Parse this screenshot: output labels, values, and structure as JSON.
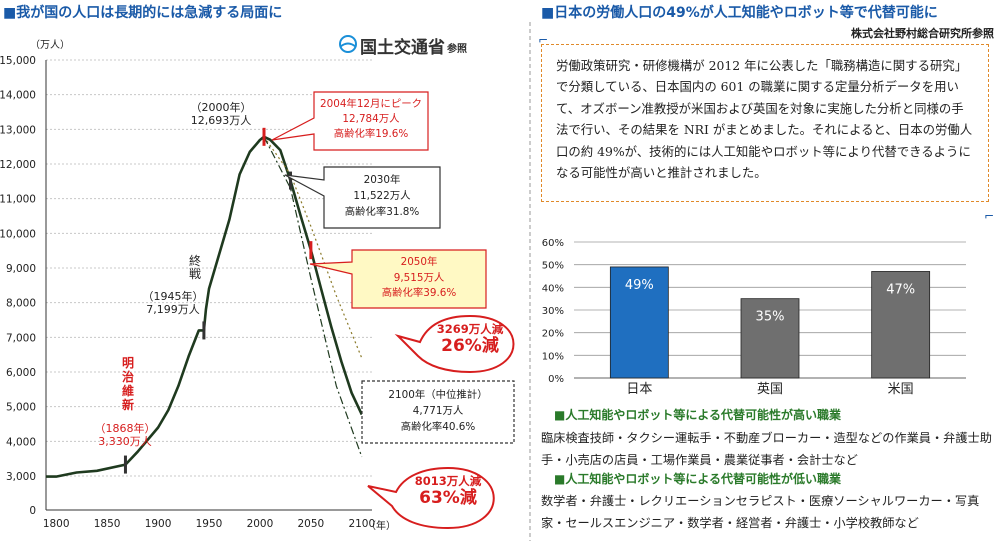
{
  "left": {
    "title": "■我が国の人口は長期的には急減する局面に",
    "source_logo": "国土交通省",
    "source_suffix": "参照",
    "y_unit": "（万人）",
    "x_unit": "（年）",
    "chart_data": {
      "type": "line",
      "ylim": [
        0,
        15000
      ],
      "xlim": [
        1790,
        2110
      ],
      "x_ticks": [
        1800,
        1850,
        1900,
        1950,
        2000,
        2050,
        2100
      ],
      "y_ticks": [
        0,
        3000,
        4000,
        5000,
        6000,
        7000,
        8000,
        9000,
        10000,
        11000,
        12000,
        13000,
        14000,
        15000
      ],
      "y_tick_labels": [
        "0",
        "3,000",
        "4,000",
        "5,000",
        "6,000",
        "7,000",
        "8,000",
        "9,000",
        "10,000",
        "11,000",
        "12,000",
        "13,000",
        "14,000",
        "15,000"
      ],
      "series": [
        {
          "values": [
            [
              1790,
              2950
            ],
            [
              1800,
              2950
            ],
            [
              1820,
              3100
            ],
            [
              1840,
              3150
            ],
            [
              1868,
              3330
            ],
            [
              1880,
              3700
            ],
            [
              1900,
              4400
            ],
            [
              1910,
              4900
            ],
            [
              1920,
              5600
            ],
            [
              1930,
              6450
            ],
            [
              1940,
              7200
            ],
            [
              1945,
              7199
            ],
            [
              1947,
              7800
            ],
            [
              1950,
              8400
            ],
            [
              1960,
              9400
            ],
            [
              1970,
              10400
            ],
            [
              1980,
              11700
            ],
            [
              1990,
              12350
            ],
            [
              2000,
              12693
            ],
            [
              2004,
              12784
            ],
            [
              2010,
              12700
            ],
            [
              2020,
              12400
            ],
            [
              2030,
              11522
            ],
            [
              2040,
              10500
            ],
            [
              2050,
              9515
            ],
            [
              2060,
              8400
            ],
            [
              2070,
              7300
            ],
            [
              2080,
              6300
            ],
            [
              2090,
              5400
            ],
            [
              2100,
              4771
            ]
          ]
        },
        {
          "values": [
            [
              2004,
              12784
            ],
            [
              2030,
              11700
            ],
            [
              2050,
              10200
            ],
            [
              2075,
              8200
            ],
            [
              2100,
              6400
            ]
          ]
        },
        {
          "values": [
            [
              2004,
              12784
            ],
            [
              2030,
              11300
            ],
            [
              2050,
              8700
            ],
            [
              2075,
              5600
            ],
            [
              2100,
              3550
            ]
          ]
        }
      ]
    },
    "annotations": {
      "meiji": "明治維新",
      "y1868_year": "（1868年）",
      "y1868_val": "3,330万人",
      "y1945_year": "（1945年）",
      "y1945_val": "7,199万人",
      "war_end": "終戦",
      "y2000_year": "（2000年）",
      "y2000_val": "12,693万人",
      "peak_l1": "2004年12月にピーク",
      "peak_l2": "12,784万人",
      "peak_l3": "高齢化率19.6%",
      "y2030_l1": "2030年",
      "y2030_l2": "11,522万人",
      "y2030_l3": "高齢化率31.8%",
      "y2050_l1": "2050年",
      "y2050_l2": "9,515万人",
      "y2050_l3": "高齢化率39.6%",
      "y2100_l1": "2100年（中位推計）",
      "y2100_l2": "4,771万人",
      "y2100_l3": "高齢化率40.6%",
      "dec1_l1": "3269万人減",
      "dec1_l2": "26%減",
      "dec2_l1": "8013万人減",
      "dec2_l2": "63%減"
    }
  },
  "right": {
    "title": "■日本の労働人口の49%が人工知能やロボット等で代替可能に",
    "source": "株式会社野村総合研究所参照",
    "paragraph": "労働政策研究・研修機構が 2012 年に公表した「職務構造に関する研究」で分類している、日本国内の 601 の職業に関する定量分析データを用いて、オズボーン准教授が米国および英国を対象に実施した分析と同様の手法で行い、その結果を NRI がまとめました。それによると、日本の労働人口の約 49%が、技術的には人工知能やロボット等により代替できるようになる可能性が高いと推計されました。",
    "chart_data": {
      "type": "bar",
      "categories": [
        "日本",
        "英国",
        "米国"
      ],
      "values": [
        49,
        35,
        47
      ],
      "value_labels": [
        "49%",
        "35%",
        "47%"
      ],
      "ylim": [
        0,
        60
      ],
      "y_ticks": [
        0,
        10,
        20,
        30,
        40,
        50,
        60
      ],
      "y_tick_labels": [
        "0%",
        "10%",
        "20%",
        "30%",
        "40%",
        "50%",
        "60%"
      ],
      "grid": true,
      "colors": [
        "#1f6fc0",
        "#6f6f6f",
        "#6f6f6f"
      ]
    },
    "high_heading": "■人工知能やロボット等による代替可能性が高い職業",
    "high_jobs": "臨床検査技師・タクシー運転手・不動産ブローカー・造型などの作業員・弁護士助手・小売店の店員・工場作業員・農業従事者・会計士など",
    "low_heading": "■人工知能やロボット等による代替可能性が低い職業",
    "low_jobs": "数学者・弁護士・レクリエーションセラピスト・医療ソーシャルワーカー・写真家・セールスエンジニア・数学者・経営者・弁護士・小学校教師など"
  }
}
